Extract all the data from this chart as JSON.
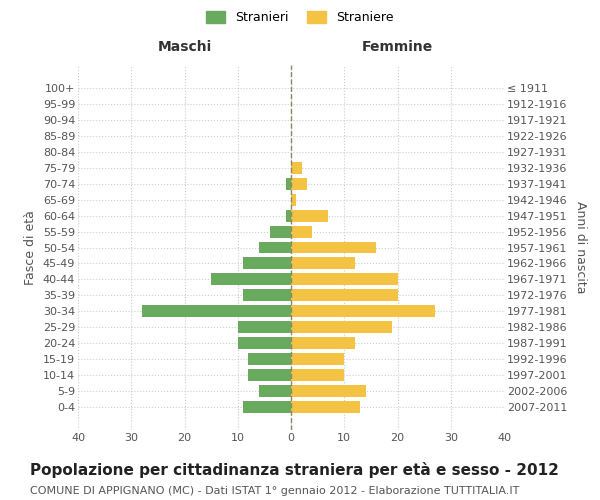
{
  "age_groups": [
    "100+",
    "95-99",
    "90-94",
    "85-89",
    "80-84",
    "75-79",
    "70-74",
    "65-69",
    "60-64",
    "55-59",
    "50-54",
    "45-49",
    "40-44",
    "35-39",
    "30-34",
    "25-29",
    "20-24",
    "15-19",
    "10-14",
    "5-9",
    "0-4"
  ],
  "birth_years": [
    "≤ 1911",
    "1912-1916",
    "1917-1921",
    "1922-1926",
    "1927-1931",
    "1932-1936",
    "1937-1941",
    "1942-1946",
    "1947-1951",
    "1952-1956",
    "1957-1961",
    "1962-1966",
    "1967-1971",
    "1972-1976",
    "1977-1981",
    "1982-1986",
    "1987-1991",
    "1992-1996",
    "1997-2001",
    "2002-2006",
    "2007-2011"
  ],
  "maschi": [
    0,
    0,
    0,
    0,
    0,
    0,
    1,
    0,
    1,
    4,
    6,
    9,
    15,
    9,
    28,
    10,
    10,
    8,
    8,
    6,
    9
  ],
  "femmine": [
    0,
    0,
    0,
    0,
    0,
    2,
    3,
    1,
    7,
    4,
    16,
    12,
    20,
    20,
    27,
    19,
    12,
    10,
    10,
    14,
    13
  ],
  "maschi_color": "#6aaa5e",
  "femmine_color": "#f5c343",
  "background_color": "#ffffff",
  "grid_color": "#cccccc",
  "title": "Popolazione per cittadinanza straniera per età e sesso - 2012",
  "subtitle": "COMUNE DI APPIGNANO (MC) - Dati ISTAT 1° gennaio 2012 - Elaborazione TUTTITALIA.IT",
  "ylabel_left": "Fasce di età",
  "ylabel_right": "Anni di nascita",
  "xlabel_left": "Maschi",
  "xlabel_right": "Femmine",
  "legend_stranieri": "Stranieri",
  "legend_straniere": "Straniere",
  "xlim": 40,
  "title_fontsize": 11,
  "subtitle_fontsize": 8,
  "axis_label_fontsize": 9,
  "tick_fontsize": 8
}
